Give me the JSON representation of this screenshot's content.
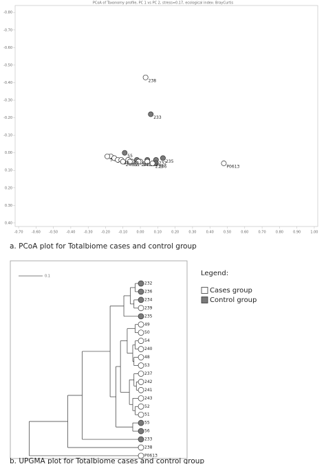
{
  "legend": {
    "title": "Legend:",
    "items": [
      {
        "name": "Cases group",
        "color": "#ffffff"
      },
      {
        "name": "Control group",
        "color": "#7a7a7a"
      }
    ]
  },
  "chart_data": [
    {
      "type": "scatter",
      "title": "PCoA of Taxonomy profile, PC 1 vs PC 2, stress=0.17, ecological index: BrayCurtis",
      "caption": "a. PCoA plot for Totalbiome cases and control group",
      "xlim": [
        -0.72,
        1.02
      ],
      "ylim": [
        -0.84,
        0.42
      ],
      "xticks": [
        {
          "value": -0.7,
          "label": "-0.70"
        },
        {
          "value": -0.6,
          "label": "-0.60"
        },
        {
          "value": -0.5,
          "label": "-0.50"
        },
        {
          "value": -0.4,
          "label": "-0.40"
        },
        {
          "value": -0.3,
          "label": "-0.30"
        },
        {
          "value": -0.2,
          "label": "-0.20"
        },
        {
          "value": -0.1,
          "label": "-0.10"
        },
        {
          "value": 0,
          "label": "0.00"
        },
        {
          "value": 0.1,
          "label": "0.10"
        },
        {
          "value": 0.2,
          "label": "0.20"
        },
        {
          "value": 0.3,
          "label": "0.30"
        },
        {
          "value": 0.4,
          "label": "0.40"
        },
        {
          "value": 0.5,
          "label": "0.50"
        },
        {
          "value": 0.6,
          "label": "0.60"
        },
        {
          "value": 0.7,
          "label": "0.70"
        },
        {
          "value": 0.8,
          "label": "0.80"
        },
        {
          "value": 0.9,
          "label": "0.90"
        },
        {
          "value": 1.0,
          "label": "1.00"
        }
      ],
      "yticks": [
        {
          "value": -0.8,
          "label": "-0.80"
        },
        {
          "value": -0.7,
          "label": "-0.70"
        },
        {
          "value": -0.6,
          "label": "-0.60"
        },
        {
          "value": -0.5,
          "label": "-0.50"
        },
        {
          "value": -0.4,
          "label": "-0.40"
        },
        {
          "value": -0.3,
          "label": "-0.30"
        },
        {
          "value": -0.2,
          "label": "-0.20"
        },
        {
          "value": -0.1,
          "label": "-0.10"
        },
        {
          "value": 0,
          "label": "0.00"
        },
        {
          "value": 0.1,
          "label": "0.10"
        },
        {
          "value": 0.2,
          "label": "0.20"
        },
        {
          "value": 0.3,
          "label": "0.30"
        },
        {
          "value": 0.4,
          "label": "0.40"
        }
      ],
      "points": [
        {
          "name": "238",
          "x": 0.03,
          "y": -0.43,
          "group": 0
        },
        {
          "name": "233",
          "x": 0.06,
          "y": -0.22,
          "group": 1
        },
        {
          "name": "55",
          "x": -0.09,
          "y": 0.0,
          "group": 1
        },
        {
          "name": "56",
          "x": -0.02,
          "y": 0.04,
          "group": 1
        },
        {
          "name": "234",
          "x": 0.04,
          "y": 0.04,
          "group": 1
        },
        {
          "name": "232",
          "x": 0.09,
          "y": 0.04,
          "group": 1
        },
        {
          "name": "235",
          "x": 0.13,
          "y": 0.03,
          "group": 1
        },
        {
          "name": "236",
          "x": 0.09,
          "y": 0.06,
          "group": 1
        },
        {
          "name": "237",
          "x": 0.04,
          "y": 0.05,
          "group": 0
        },
        {
          "name": "239",
          "x": 0.07,
          "y": 0.06,
          "group": 0
        },
        {
          "name": "241",
          "x": 0.0,
          "y": 0.05,
          "group": 0
        },
        {
          "name": "242",
          "x": -0.01,
          "y": 0.05,
          "group": 0
        },
        {
          "name": "243",
          "x": -0.07,
          "y": 0.04,
          "group": 0
        },
        {
          "name": "51",
          "x": -0.05,
          "y": 0.05,
          "group": 0
        },
        {
          "name": "52",
          "x": -0.06,
          "y": 0.05,
          "group": 0
        },
        {
          "name": "53",
          "x": -0.17,
          "y": 0.02,
          "group": 0
        },
        {
          "name": "54",
          "x": -0.19,
          "y": 0.02,
          "group": 0
        },
        {
          "name": "50",
          "x": -0.15,
          "y": 0.03,
          "group": 0
        },
        {
          "name": "49",
          "x": -0.13,
          "y": 0.04,
          "group": 0
        },
        {
          "name": "48",
          "x": -0.11,
          "y": 0.04,
          "group": 0
        },
        {
          "name": "240",
          "x": -0.1,
          "y": 0.05,
          "group": 0
        },
        {
          "name": "P0613",
          "x": 0.48,
          "y": 0.06,
          "group": 0
        }
      ]
    },
    {
      "type": "dendrogram",
      "caption": "b. UPGMA plot for Totalbiome cases and control group",
      "scale": 0.1,
      "tree": {
        "height": 0.45,
        "children": [
          {
            "height": 0.29,
            "children": [
              {
                "height": 0.23,
                "children": [
                  {
                    "height": 0.114,
                    "children": [
                      {
                        "height": 0.057,
                        "children": [
                          {
                            "height": 0.03,
                            "children": [
                              {
                                "height": 0.01,
                                "children": [
                                  {
                                    "name": "232",
                                    "group": 1
                                  },
                                  {
                                    "name": "236",
                                    "group": 1
                                  }
                                ]
                              },
                              {
                                "height": 0.015,
                                "children": [
                                  {
                                    "name": "234",
                                    "group": 1
                                  },
                                  {
                                    "name": "239",
                                    "group": 0
                                  }
                                ]
                              }
                            ]
                          },
                          {
                            "name": "235",
                            "group": 1
                          }
                        ]
                      },
                      {
                        "height": 0.09,
                        "children": [
                          {
                            "height": 0.071,
                            "children": [
                              {
                                "height": 0.043,
                                "children": [
                                  {
                                    "height": 0.01,
                                    "children": [
                                      {
                                        "name": "49",
                                        "group": 0
                                      },
                                      {
                                        "name": "50",
                                        "group": 0
                                      }
                                    ]
                                  },
                                  {
                                    "height": 0.02,
                                    "children": [
                                      {
                                        "height": 0.01,
                                        "children": [
                                          {
                                            "name": "54",
                                            "group": 0
                                          },
                                          {
                                            "name": "240",
                                            "group": 0
                                          }
                                        ]
                                      },
                                      {
                                        "height": 0.015,
                                        "children": [
                                          {
                                            "name": "48",
                                            "group": 0
                                          },
                                          {
                                            "name": "53",
                                            "group": 0
                                          }
                                        ]
                                      }
                                    ]
                                  }
                                ]
                              },
                              {
                                "height": 0.034,
                                "children": [
                                  {
                                    "height": 0.015,
                                    "children": [
                                      {
                                        "name": "237",
                                        "group": 0
                                      },
                                      {
                                        "height": 0.005,
                                        "children": [
                                          {
                                            "name": "242",
                                            "group": 0
                                          },
                                          {
                                            "name": "241",
                                            "group": 0
                                          }
                                        ]
                                      }
                                    ]
                                  },
                                  {
                                    "height": 0.02,
                                    "children": [
                                      {
                                        "name": "243",
                                        "group": 0
                                      },
                                      {
                                        "height": 0.01,
                                        "children": [
                                          {
                                            "name": "52",
                                            "group": 0
                                          },
                                          {
                                            "name": "51",
                                            "group": 0
                                          }
                                        ]
                                      }
                                    ]
                                  }
                                ]
                              }
                            ]
                          },
                          {
                            "height": 0.02,
                            "children": [
                              {
                                "name": "55",
                                "group": 1
                              },
                              {
                                "name": "56",
                                "group": 1
                              }
                            ]
                          }
                        ]
                      }
                    ]
                  },
                  {
                    "name": "233",
                    "group": 1
                  }
                ]
              },
              {
                "name": "238",
                "group": 0
              }
            ]
          },
          {
            "name": "P0613",
            "group": 0
          }
        ]
      }
    }
  ]
}
